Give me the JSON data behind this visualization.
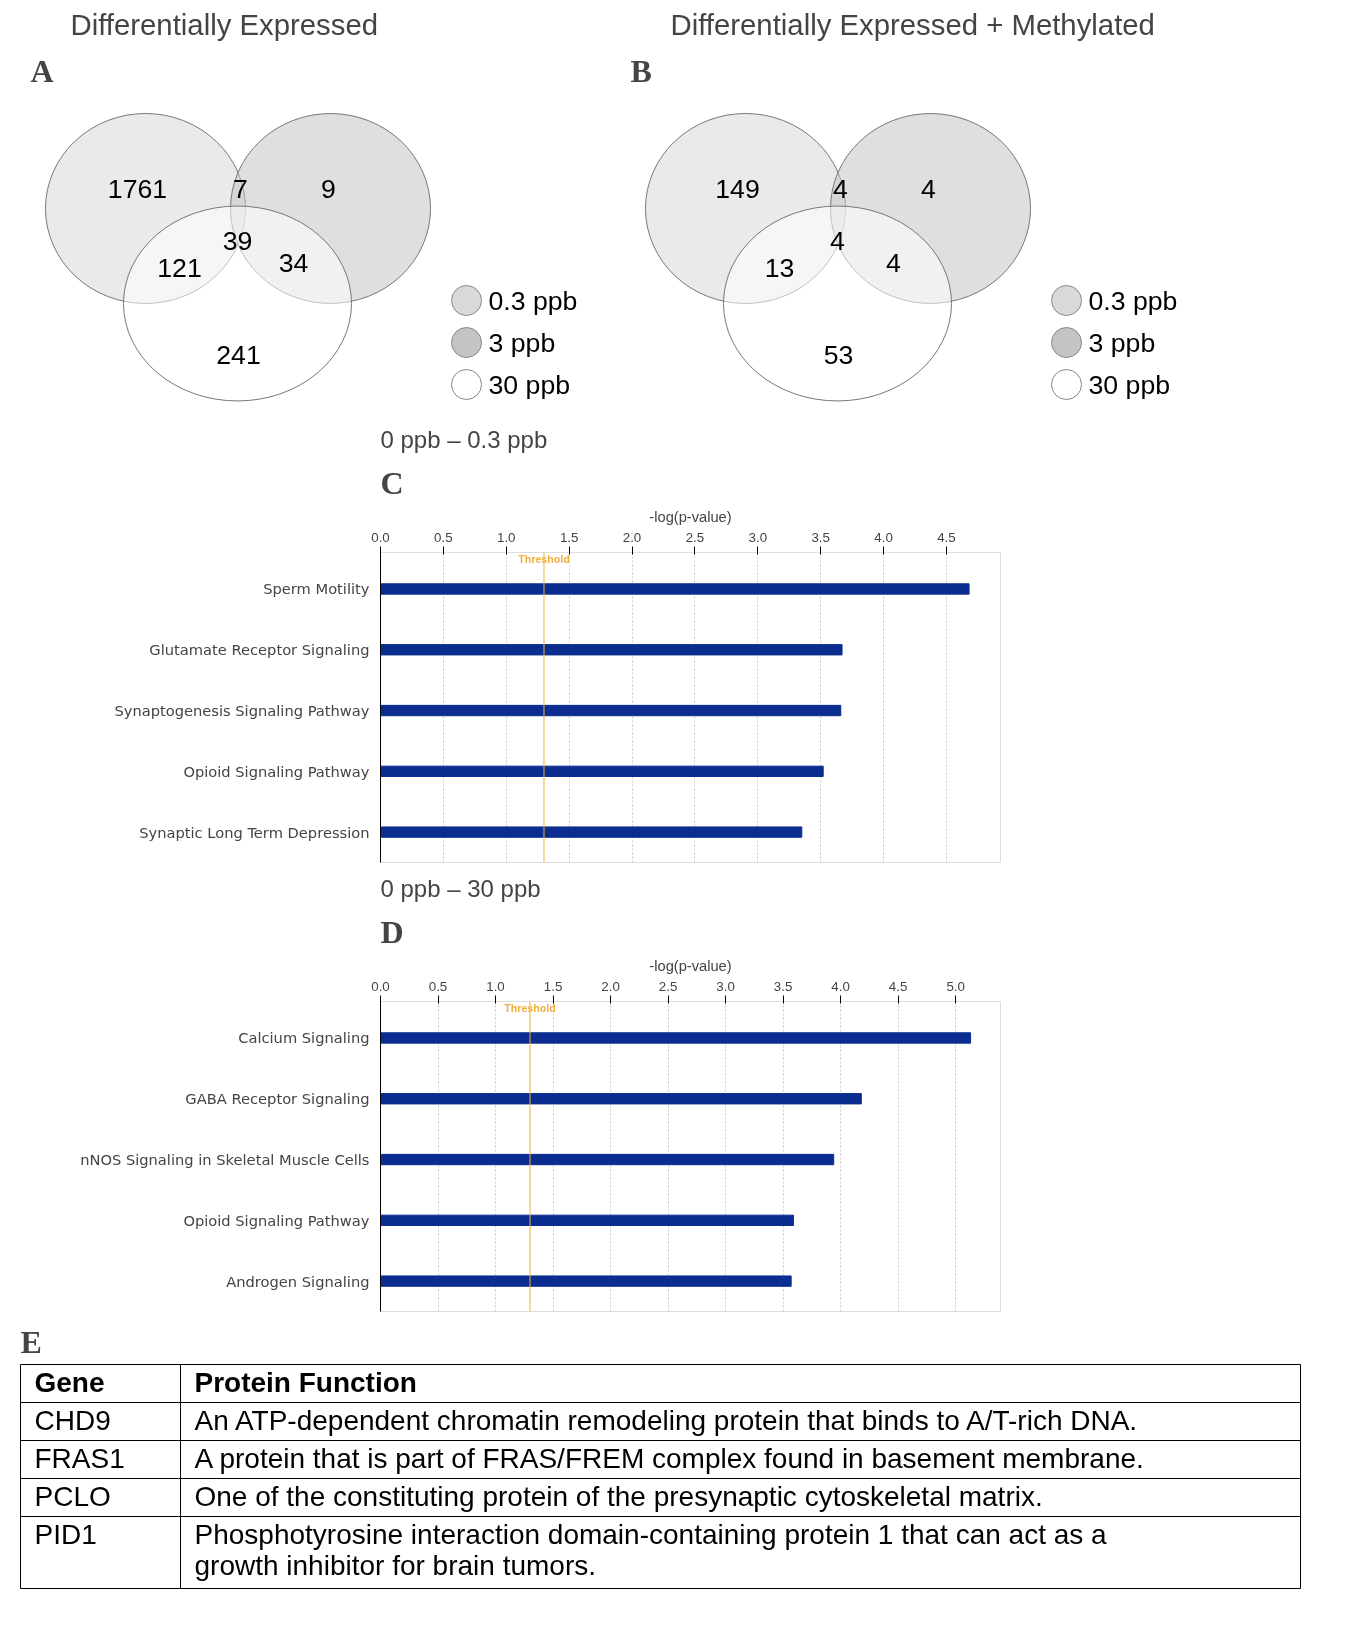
{
  "chart_data": [
    {
      "type": "other",
      "title": "Differentially Expressed",
      "annotations": [
        "A",
        "1761",
        "9",
        "7",
        "39",
        "121",
        "34",
        "241"
      ],
      "legend": "right",
      "series": [
        {
          "name": "0.3 ppb",
          "color": "#d9d9d9"
        },
        {
          "name": "3 ppb",
          "color": "#c4c4c4"
        },
        {
          "name": "30 ppb",
          "color": "#ffffff"
        }
      ]
    },
    {
      "type": "other",
      "title": "Differentially Expressed + Methylated",
      "annotations": [
        "B",
        "149",
        "4",
        "4",
        "4",
        "13",
        "4",
        "53"
      ],
      "legend": "right",
      "series": [
        {
          "name": "0.3 ppb",
          "color": "#d9d9d9"
        },
        {
          "name": "3 ppb",
          "color": "#c4c4c4"
        },
        {
          "name": "30 ppb",
          "color": "#ffffff"
        }
      ]
    },
    {
      "type": "bar",
      "orientation": "horizontal",
      "title": "0 ppb – 0.3 ppb",
      "annotations": [
        "C"
      ],
      "xlabel": "-log(p-value)",
      "categories": [
        "Sperm Motility",
        "Glutamate Receptor Signaling",
        "Synaptogenesis Signaling Pathway",
        "Opioid Signaling Pathway",
        "Synaptic Long Term Depression"
      ],
      "values": [
        4.68,
        3.67,
        3.66,
        3.52,
        3.35
      ],
      "color": "#0a2d8f",
      "xlim": [
        0,
        4.93
      ],
      "xticks": [
        {
          "value": 0,
          "label": "0.0"
        },
        {
          "value": 0.5,
          "label": "0.5"
        },
        {
          "value": 1,
          "label": "1.0"
        },
        {
          "value": 1.5,
          "label": "1.5"
        },
        {
          "value": 2,
          "label": "2.0"
        },
        {
          "value": 2.5,
          "label": "2.5"
        },
        {
          "value": 3,
          "label": "3.0"
        },
        {
          "value": 3.5,
          "label": "3.5"
        },
        {
          "value": 4,
          "label": "4.0"
        },
        {
          "value": 4.5,
          "label": "4.5"
        }
      ],
      "grid": "x",
      "ref_lines": [
        {
          "axis": "x",
          "value": 1.3,
          "label": "Threshold",
          "color": "#f0b040"
        }
      ]
    },
    {
      "type": "bar",
      "orientation": "horizontal",
      "title": "0 ppb – 30 ppb",
      "annotations": [
        "D"
      ],
      "xlabel": "-log(p-value)",
      "categories": [
        "Calcium Signaling",
        "GABA Receptor Signaling",
        "nNOS Signaling in Skeletal Muscle Cells",
        "Opioid Signaling Pathway",
        "Androgen Signaling"
      ],
      "values": [
        5.13,
        4.18,
        3.94,
        3.59,
        3.57
      ],
      "color": "#0a2d8f",
      "xlim": [
        0,
        5.39
      ],
      "xticks": [
        {
          "value": 0,
          "label": "0.0"
        },
        {
          "value": 0.5,
          "label": "0.5"
        },
        {
          "value": 1,
          "label": "1.0"
        },
        {
          "value": 1.5,
          "label": "1.5"
        },
        {
          "value": 2,
          "label": "2.0"
        },
        {
          "value": 2.5,
          "label": "2.5"
        },
        {
          "value": 3,
          "label": "3.0"
        },
        {
          "value": 3.5,
          "label": "3.5"
        },
        {
          "value": 4,
          "label": "4.0"
        },
        {
          "value": 4.5,
          "label": "4.5"
        },
        {
          "value": 5,
          "label": "5.0"
        }
      ],
      "grid": "x",
      "ref_lines": [
        {
          "axis": "x",
          "value": 1.3,
          "label": "Threshold",
          "color": "#f0b040"
        }
      ]
    },
    {
      "type": "other",
      "annotations": [
        "E"
      ],
      "cell_labels": [
        [
          "Gene",
          "Protein Function"
        ],
        [
          "CHD9",
          "An ATP-dependent chromatin remodeling protein that binds to A/T-rich DNA."
        ],
        [
          "FRAS1",
          "A protein that is part of FRAS/FREM complex found in basement membrane."
        ],
        [
          "PCLO",
          "One of the constituting protein of the presynaptic cytoskeletal matrix."
        ],
        [
          "PID1",
          "Phosphotyrosine interaction domain-containing protein 1 that can act as a growth inhibitor for brain tumors."
        ]
      ]
    }
  ]
}
